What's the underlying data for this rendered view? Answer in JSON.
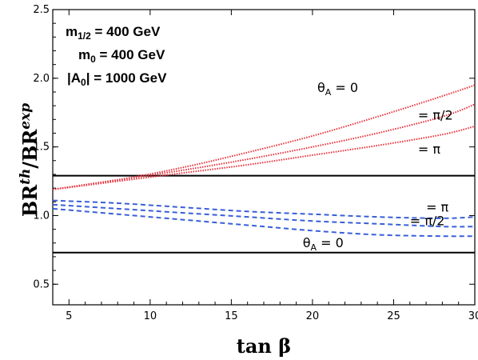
{
  "chart_data": {
    "type": "line",
    "xlabel": "tan β",
    "ylabel": "BR^th/BR^exp",
    "xlim": [
      4,
      30
    ],
    "ylim": [
      0.35,
      2.5
    ],
    "xticks": [
      5,
      10,
      15,
      20,
      25,
      30
    ],
    "yticks": [
      0.5,
      1.0,
      1.5,
      2.0,
      2.5
    ],
    "ytick_labels": [
      "0.5",
      "1.0",
      "1.5",
      "2.0",
      "2.5"
    ],
    "parameters": [
      {
        "name": "m",
        "sub": "1/2",
        "value": " = 400 GeV"
      },
      {
        "name": "m",
        "sub": "0",
        "value": " = 400 GeV"
      },
      {
        "name": "|A",
        "sub": "0",
        "value": "| = 1000 GeV"
      }
    ],
    "exp_bounds": [
      1.29,
      0.73
    ],
    "series": [
      {
        "name": "θA = 0",
        "style": "dotted",
        "color": "#e8323c",
        "x": [
          4,
          8,
          12,
          16,
          20,
          24,
          28,
          30
        ],
        "y": [
          1.19,
          1.26,
          1.35,
          1.46,
          1.58,
          1.72,
          1.87,
          1.95
        ]
      },
      {
        "name": "= π/2",
        "style": "dotted",
        "color": "#e8323c",
        "x": [
          4,
          8,
          12,
          16,
          20,
          24,
          28,
          30
        ],
        "y": [
          1.19,
          1.26,
          1.33,
          1.41,
          1.5,
          1.6,
          1.72,
          1.81
        ]
      },
      {
        "name": "= π",
        "style": "dotted",
        "color": "#e8323c",
        "x": [
          4,
          8,
          12,
          16,
          20,
          24,
          28,
          30
        ],
        "y": [
          1.19,
          1.25,
          1.31,
          1.37,
          1.44,
          1.51,
          1.59,
          1.65
        ]
      },
      {
        "name": "= π",
        "style": "dashed",
        "color": "#3a5fd8",
        "x": [
          4,
          8,
          12,
          16,
          20,
          24,
          28,
          30
        ],
        "y": [
          1.11,
          1.09,
          1.06,
          1.03,
          1.01,
          0.99,
          0.98,
          0.99
        ]
      },
      {
        "name": "= π/2",
        "style": "dashed",
        "color": "#3a5fd8",
        "x": [
          4,
          8,
          12,
          16,
          20,
          24,
          28,
          30
        ],
        "y": [
          1.08,
          1.05,
          1.02,
          0.99,
          0.96,
          0.94,
          0.92,
          0.92
        ]
      },
      {
        "name": "θA = 0",
        "style": "dashed",
        "color": "#3a5fd8",
        "x": [
          4,
          8,
          12,
          16,
          20,
          24,
          28,
          30
        ],
        "y": [
          1.05,
          1.01,
          0.97,
          0.93,
          0.89,
          0.86,
          0.85,
          0.85
        ]
      }
    ],
    "curve_labels": [
      {
        "text": "θ",
        "sub": "A",
        "rest": " = 0",
        "x": 20.3,
        "y": 1.9
      },
      {
        "text": "",
        "sub": "",
        "rest": "= π/2",
        "x": 26.5,
        "y": 1.7
      },
      {
        "text": "",
        "sub": "",
        "rest": "= π",
        "x": 26.5,
        "y": 1.45
      },
      {
        "text": "",
        "sub": "",
        "rest": "= π",
        "x": 27.0,
        "y": 1.03
      },
      {
        "text": "",
        "sub": "",
        "rest": "= π/2",
        "x": 26.0,
        "y": 0.93
      },
      {
        "text": "θ",
        "sub": "A",
        "rest": " = 0",
        "x": 19.4,
        "y": 0.77
      }
    ]
  }
}
